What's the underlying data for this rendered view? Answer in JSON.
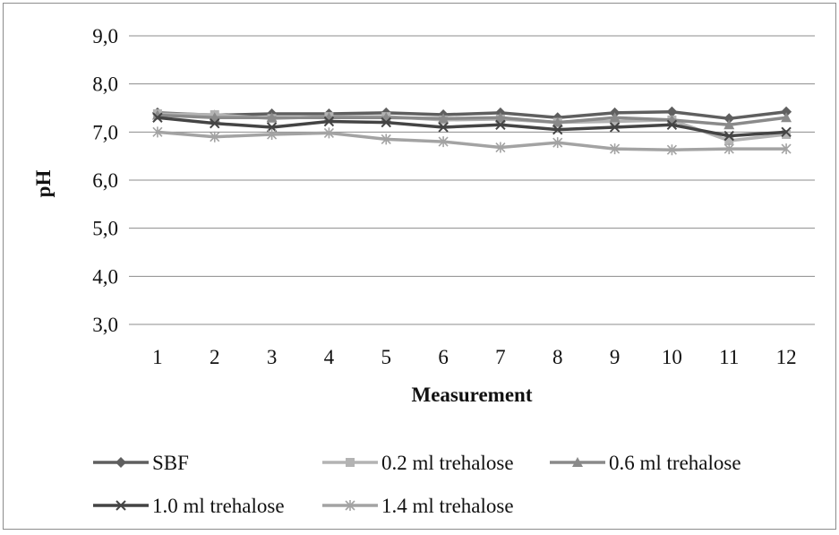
{
  "chart_data": {
    "type": "line",
    "xlabel": "Measurement",
    "ylabel": "pH",
    "ylim": [
      3.0,
      9.0
    ],
    "yticks": [
      "3,0",
      "4,0",
      "5,0",
      "6,0",
      "7,0",
      "8,0",
      "9,0"
    ],
    "categories": [
      "1",
      "2",
      "3",
      "4",
      "5",
      "6",
      "7",
      "8",
      "9",
      "10",
      "11",
      "12"
    ],
    "grid": "horizontal",
    "legend_position": "bottom",
    "series": [
      {
        "name": "SBF",
        "marker": "diamond",
        "color": "#5f5f5f",
        "values": [
          7.4,
          7.35,
          7.38,
          7.38,
          7.4,
          7.36,
          7.4,
          7.3,
          7.4,
          7.42,
          7.28,
          7.42
        ]
      },
      {
        "name": "0.2 ml trehalose",
        "marker": "square",
        "color": "#b3b3b3",
        "values": [
          7.38,
          7.36,
          7.28,
          7.32,
          7.32,
          7.25,
          7.27,
          7.2,
          7.22,
          7.25,
          6.82,
          6.95
        ]
      },
      {
        "name": "0.6 ml trehalose",
        "marker": "triangle",
        "color": "#8a8a8a",
        "values": [
          7.35,
          7.3,
          7.3,
          7.3,
          7.3,
          7.28,
          7.3,
          7.2,
          7.3,
          7.25,
          7.15,
          7.3
        ]
      },
      {
        "name": "1.0 ml trehalose",
        "marker": "x",
        "color": "#444444",
        "values": [
          7.3,
          7.18,
          7.1,
          7.22,
          7.2,
          7.1,
          7.15,
          7.05,
          7.1,
          7.15,
          6.92,
          7.0
        ]
      },
      {
        "name": "1.4 ml trehalose",
        "marker": "asterisk",
        "color": "#a3a3a3",
        "values": [
          7.0,
          6.9,
          6.95,
          6.98,
          6.85,
          6.8,
          6.68,
          6.78,
          6.65,
          6.63,
          6.65,
          6.65
        ]
      }
    ]
  }
}
